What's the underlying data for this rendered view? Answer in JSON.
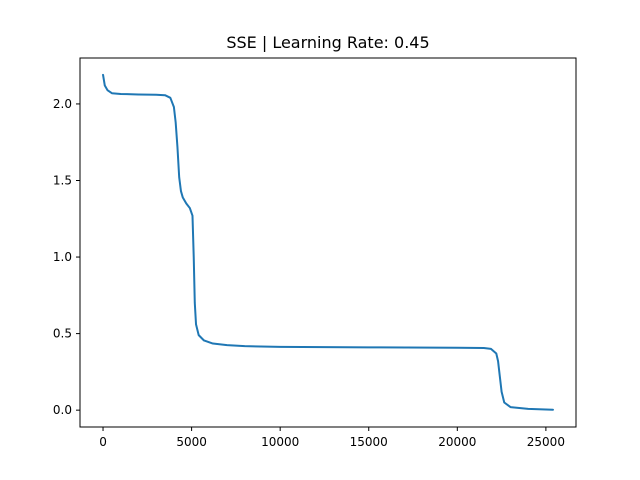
{
  "chart_data": {
    "type": "line",
    "title": "SSE | Learning Rate: 0.45",
    "xlabel": "",
    "ylabel": "",
    "xlim": [
      -1300,
      26700
    ],
    "ylim": [
      -0.11,
      2.3
    ],
    "grid": false,
    "x_ticks": [
      {
        "value": 0,
        "label": "0"
      },
      {
        "value": 5000,
        "label": "5000"
      },
      {
        "value": 10000,
        "label": "10000"
      },
      {
        "value": 15000,
        "label": "15000"
      },
      {
        "value": 20000,
        "label": "20000"
      },
      {
        "value": 25000,
        "label": "25000"
      }
    ],
    "y_ticks": [
      {
        "value": 0.0,
        "label": "0.0"
      },
      {
        "value": 0.5,
        "label": "0.5"
      },
      {
        "value": 1.0,
        "label": "1.0"
      },
      {
        "value": 1.5,
        "label": "1.5"
      },
      {
        "value": 2.0,
        "label": "2.0"
      }
    ],
    "series": [
      {
        "color": "#1f77b4",
        "points": [
          [
            0,
            2.19
          ],
          [
            100,
            2.12
          ],
          [
            250,
            2.09
          ],
          [
            500,
            2.07
          ],
          [
            1000,
            2.065
          ],
          [
            2000,
            2.062
          ],
          [
            3000,
            2.06
          ],
          [
            3500,
            2.057
          ],
          [
            3800,
            2.04
          ],
          [
            4000,
            1.98
          ],
          [
            4100,
            1.88
          ],
          [
            4200,
            1.72
          ],
          [
            4300,
            1.52
          ],
          [
            4400,
            1.43
          ],
          [
            4500,
            1.39
          ],
          [
            4700,
            1.35
          ],
          [
            4900,
            1.32
          ],
          [
            5050,
            1.27
          ],
          [
            5120,
            1.0
          ],
          [
            5180,
            0.7
          ],
          [
            5250,
            0.56
          ],
          [
            5400,
            0.49
          ],
          [
            5700,
            0.455
          ],
          [
            6200,
            0.435
          ],
          [
            7000,
            0.425
          ],
          [
            8000,
            0.418
          ],
          [
            10000,
            0.413
          ],
          [
            15000,
            0.41
          ],
          [
            20000,
            0.408
          ],
          [
            21500,
            0.406
          ],
          [
            21900,
            0.4
          ],
          [
            22200,
            0.37
          ],
          [
            22300,
            0.32
          ],
          [
            22400,
            0.22
          ],
          [
            22500,
            0.12
          ],
          [
            22650,
            0.05
          ],
          [
            23000,
            0.02
          ],
          [
            24000,
            0.008
          ],
          [
            25000,
            0.004
          ],
          [
            25400,
            0.003
          ]
        ]
      }
    ]
  }
}
